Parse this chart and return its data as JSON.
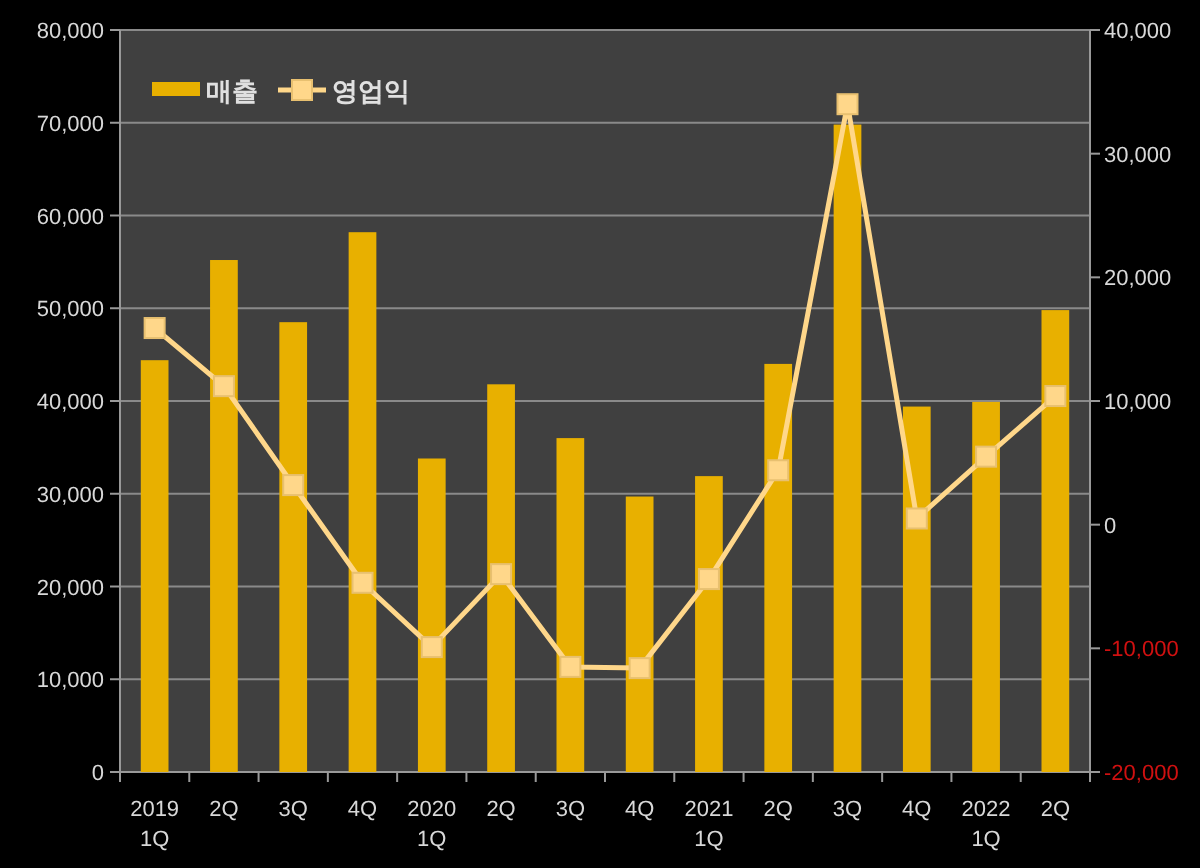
{
  "chart_data": {
    "type": "bar",
    "categories": [
      "2019\n1Q",
      "2Q",
      "3Q",
      "4Q",
      "2020\n1Q",
      "2Q",
      "3Q",
      "4Q",
      "2021\n1Q",
      "2Q",
      "3Q",
      "4Q",
      "2022\n1Q",
      "2Q"
    ],
    "series": [
      {
        "name": "매출",
        "color": "#e8b000",
        "values": [
          44400,
          55200,
          48500,
          58200,
          33800,
          41800,
          36000,
          29700,
          31900,
          44000,
          69800,
          39400,
          39900,
          49800
        ]
      },
      {
        "name": "영업익",
        "type": "line",
        "axis": "y2",
        "color": "#ffd78a",
        "values": [
          15900,
          11200,
          3200,
          -4700,
          -9900,
          -4000,
          -11500,
          -11600,
          -4400,
          4400,
          34000,
          500,
          5500,
          10400
        ]
      }
    ],
    "ylim": [
      0,
      80000
    ],
    "yticks": [
      {
        "value": 0,
        "label": "0"
      },
      {
        "value": 10000,
        "label": "10,000"
      },
      {
        "value": 20000,
        "label": "20,000"
      },
      {
        "value": 30000,
        "label": "30,000"
      },
      {
        "value": 40000,
        "label": "40,000"
      },
      {
        "value": 50000,
        "label": "50,000"
      },
      {
        "value": 60000,
        "label": "60,000"
      },
      {
        "value": 70000,
        "label": "70,000"
      },
      {
        "value": 80000,
        "label": "80,000"
      }
    ],
    "y2lim": [
      -20000,
      40000
    ],
    "y2ticks": [
      {
        "value": -20000,
        "label": "-20,000"
      },
      {
        "value": -10000,
        "label": "-10,000"
      },
      {
        "value": 0,
        "label": "0"
      },
      {
        "value": 10000,
        "label": "10,000"
      },
      {
        "value": 20000,
        "label": "20,000"
      },
      {
        "value": 30000,
        "label": "30,000"
      },
      {
        "value": 40000,
        "label": "40,000"
      }
    ],
    "grid": "y",
    "legend": "top left",
    "marker": "square",
    "line_style": "solid"
  }
}
